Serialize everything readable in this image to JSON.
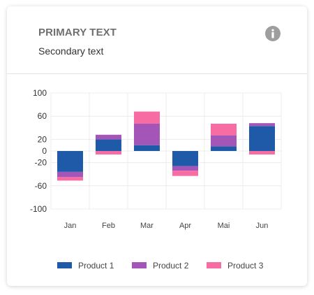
{
  "card": {
    "title": "PRIMARY TEXT",
    "subtitle": "Secondary text",
    "info_icon": "info-icon"
  },
  "chart_data": {
    "type": "bar",
    "stacked": true,
    "categories": [
      "Jan",
      "Feb",
      "Mar",
      "Apr",
      "Mai",
      "Jun"
    ],
    "series": [
      {
        "name": "Product 1",
        "color": "#1e5aa8",
        "values": [
          -36,
          20,
          10,
          -26,
          8,
          43
        ]
      },
      {
        "name": "Product 2",
        "color": "#a356b8",
        "values": [
          -9,
          8,
          37,
          -8,
          19,
          5
        ]
      },
      {
        "name": "Product 3",
        "color": "#f86ca4",
        "values": [
          -6,
          -6,
          21,
          -9,
          20,
          -6
        ]
      }
    ],
    "yticks": [
      100,
      60,
      20,
      0,
      -20,
      -60,
      -100
    ],
    "ylim": [
      -100,
      100
    ],
    "grid": true,
    "legend_position": "bottom",
    "title": "",
    "xlabel": "",
    "ylabel": ""
  }
}
